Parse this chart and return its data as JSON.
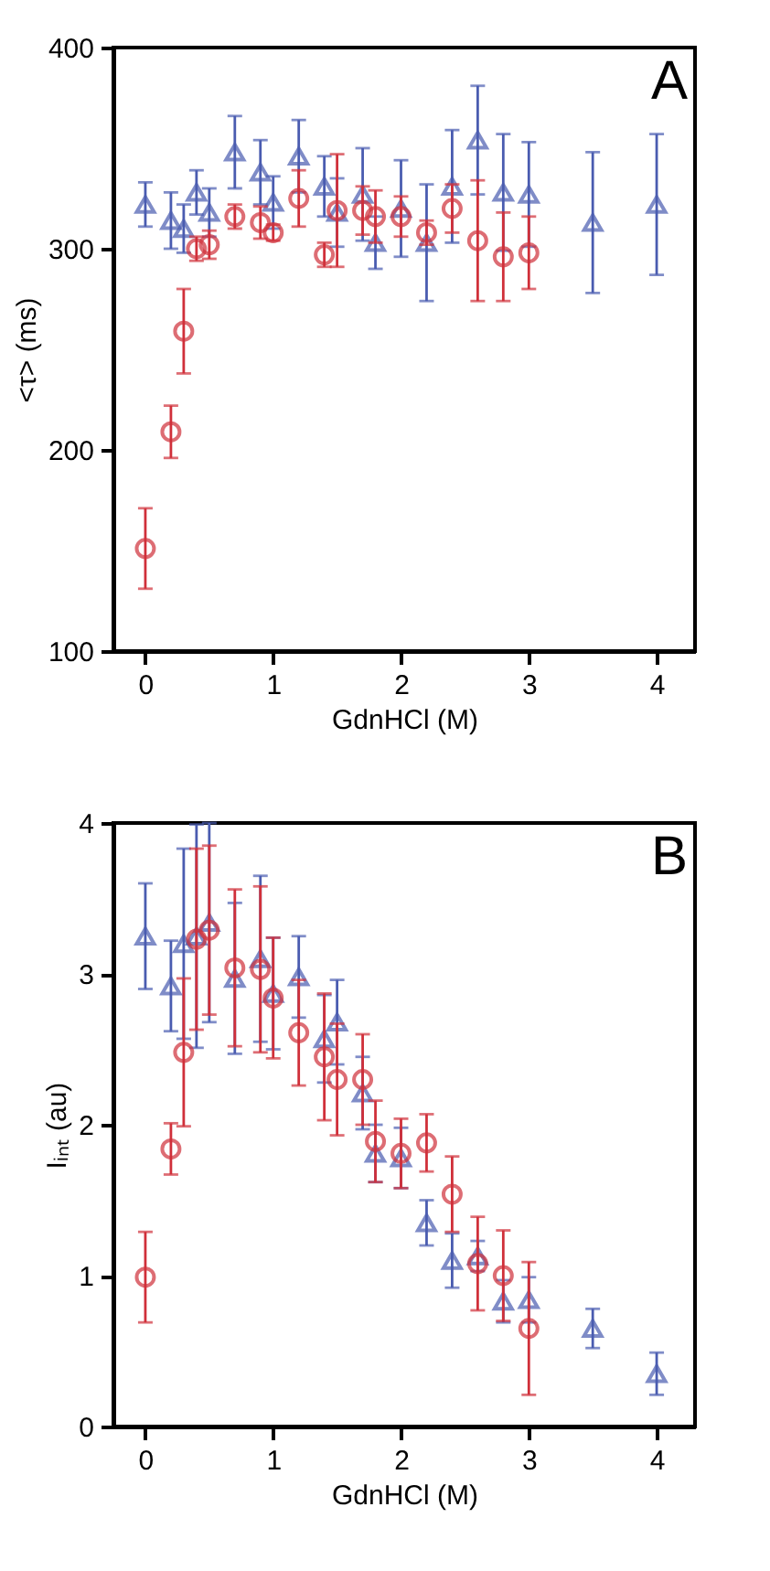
{
  "chart_data": [
    {
      "type": "scatter",
      "xlabel": "GdnHCl (M)",
      "ylabel": "<τ> (ms)",
      "annotations": [
        "A"
      ],
      "xlim": [
        -0.25,
        4.3
      ],
      "xticks": [
        0,
        1,
        2,
        3,
        4
      ],
      "ylim": [
        100,
        400
      ],
      "yticks": [
        100,
        200,
        300,
        400
      ],
      "grid": false,
      "series": [
        {
          "color": "#4a5cb0",
          "marker": "triangle",
          "x": [
            0,
            0.2,
            0.3,
            0.4,
            0.5,
            0.7,
            0.9,
            1.0,
            1.2,
            1.4,
            1.5,
            1.7,
            1.8,
            2.0,
            2.2,
            2.4,
            2.6,
            2.8,
            3.0,
            3.5,
            4.0
          ],
          "values": [
            322,
            314,
            310,
            328,
            318,
            348,
            338,
            323,
            346,
            331,
            318,
            327,
            303,
            320,
            303,
            331,
            354,
            328,
            327,
            313,
            322
          ],
          "errors": [
            11,
            14,
            12,
            11,
            12,
            18,
            16,
            13,
            18,
            15,
            17,
            23,
            13,
            24,
            29,
            28,
            27,
            29,
            26,
            35,
            35
          ]
        },
        {
          "color": "#d0303a",
          "marker": "circle",
          "x": [
            0,
            0.2,
            0.3,
            0.4,
            0.5,
            0.7,
            0.9,
            1.0,
            1.2,
            1.4,
            1.5,
            1.7,
            1.8,
            2.0,
            2.2,
            2.4,
            2.6,
            2.8,
            3.0
          ],
          "values": [
            151,
            209,
            259,
            300,
            302,
            316,
            313,
            308,
            325,
            297,
            319,
            319,
            316,
            316,
            308,
            320,
            304,
            296,
            298
          ],
          "errors": [
            20,
            13,
            21,
            6,
            7,
            6,
            8,
            4,
            14,
            6,
            28,
            12,
            13,
            10,
            6,
            12,
            30,
            22,
            18
          ]
        }
      ]
    },
    {
      "type": "scatter",
      "xlabel": "GdnHCl (M)",
      "ylabel": "Iᵢₙₜ (au)",
      "annotations": [
        "B"
      ],
      "xlim": [
        -0.25,
        4.3
      ],
      "xticks": [
        0,
        1,
        2,
        3,
        4
      ],
      "ylim": [
        0,
        4
      ],
      "yticks": [
        0,
        1,
        2,
        3,
        4
      ],
      "grid": false,
      "series": [
        {
          "color": "#4a5cb0",
          "marker": "triangle",
          "x": [
            0,
            0.2,
            0.3,
            0.4,
            0.5,
            0.7,
            0.9,
            1.0,
            1.2,
            1.4,
            1.5,
            1.7,
            1.8,
            2.0,
            2.2,
            2.4,
            2.6,
            2.8,
            3.0,
            3.5,
            4.0
          ],
          "values": [
            3.25,
            2.92,
            3.2,
            3.25,
            3.34,
            2.97,
            3.1,
            2.87,
            2.98,
            2.57,
            2.68,
            2.21,
            1.81,
            1.78,
            1.35,
            1.1,
            1.13,
            0.83,
            0.84,
            0.65,
            0.35
          ],
          "errors": [
            0.35,
            0.3,
            0.63,
            0.74,
            0.66,
            0.5,
            0.55,
            0.37,
            0.27,
            0.29,
            0.28,
            0.24,
            0.19,
            0.2,
            0.15,
            0.18,
            0.1,
            0.14,
            0.15,
            0.13,
            0.14
          ]
        },
        {
          "color": "#d0303a",
          "marker": "circle",
          "x": [
            0,
            0.2,
            0.3,
            0.4,
            0.5,
            0.7,
            0.9,
            1.0,
            1.2,
            1.4,
            1.5,
            1.7,
            1.8,
            2.0,
            2.2,
            2.4,
            2.6,
            2.8,
            3.0
          ],
          "values": [
            0.99,
            1.84,
            2.48,
            3.23,
            3.29,
            3.04,
            3.03,
            2.84,
            2.61,
            2.45,
            2.3,
            2.3,
            1.89,
            1.81,
            1.88,
            1.54,
            1.08,
            1.0,
            0.65
          ],
          "errors": [
            0.3,
            0.17,
            0.49,
            0.6,
            0.56,
            0.52,
            0.55,
            0.4,
            0.35,
            0.42,
            0.37,
            0.3,
            0.27,
            0.23,
            0.19,
            0.25,
            0.31,
            0.3,
            0.44
          ]
        }
      ]
    }
  ]
}
